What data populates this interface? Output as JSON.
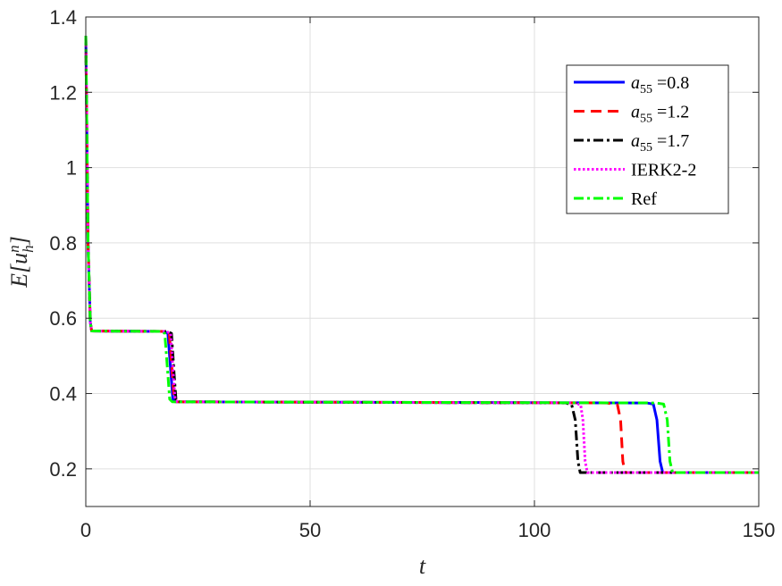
{
  "chart_data": {
    "type": "line",
    "title": "",
    "xlabel": "t",
    "ylabel_parts": {
      "main": "E[u",
      "sub": "h",
      "sup": "n",
      "close": "]"
    },
    "xlim": [
      0,
      150
    ],
    "ylim": [
      0.1,
      1.4
    ],
    "xticks": [
      0,
      50,
      100,
      150
    ],
    "yticks": [
      0.2,
      0.4,
      0.6,
      0.8,
      1.0,
      1.2,
      1.4
    ],
    "xtick_labels": [
      "0",
      "50",
      "100",
      "150"
    ],
    "ytick_labels": [
      "0.2",
      "0.4",
      "0.6",
      "0.8",
      "1",
      "1.2",
      "1.4"
    ],
    "grid": true,
    "legend_position": "top-right",
    "series": [
      {
        "legend_parts": [
          "a",
          "55",
          " =0.8"
        ],
        "color": "#0000ff",
        "dash": "solid",
        "x": [
          0,
          0.5,
          1.0,
          1.3,
          17,
          18.3,
          19.0,
          19.4,
          20,
          125,
          126.5,
          127.3,
          128.0,
          128.6,
          150
        ],
        "y": [
          1.35,
          0.8,
          0.59,
          0.566,
          0.565,
          0.56,
          0.45,
          0.385,
          0.378,
          0.375,
          0.372,
          0.33,
          0.22,
          0.19,
          0.19
        ]
      },
      {
        "legend_parts": [
          "a",
          "55",
          " =1.2"
        ],
        "color": "#ff0000",
        "dash": "dashed",
        "x": [
          0,
          0.5,
          1.0,
          1.3,
          17.5,
          18.6,
          19.3,
          19.7,
          20.3,
          116,
          118.5,
          119.2,
          119.7,
          120.2,
          150
        ],
        "y": [
          1.35,
          0.8,
          0.59,
          0.566,
          0.565,
          0.56,
          0.45,
          0.385,
          0.378,
          0.375,
          0.37,
          0.33,
          0.22,
          0.19,
          0.19
        ]
      },
      {
        "legend_parts": [
          "a",
          "55",
          " =1.7"
        ],
        "color": "#000000",
        "dash": "dashdot",
        "x": [
          0,
          0.5,
          1.0,
          1.3,
          18,
          19.1,
          19.7,
          20.1,
          20.6,
          107,
          108.3,
          109.1,
          109.7,
          110.2,
          150
        ],
        "y": [
          1.35,
          0.8,
          0.59,
          0.566,
          0.565,
          0.56,
          0.45,
          0.385,
          0.378,
          0.375,
          0.37,
          0.33,
          0.22,
          0.19,
          0.19
        ]
      },
      {
        "legend_parts": [
          "IERK2-2"
        ],
        "color": "#ff00ff",
        "dash": "dotted",
        "x": [
          0,
          0.5,
          1.0,
          1.3,
          17.8,
          18.9,
          19.5,
          19.9,
          20.4,
          109,
          110.3,
          110.8,
          111.3,
          111.8,
          150
        ],
        "y": [
          1.35,
          0.8,
          0.59,
          0.566,
          0.565,
          0.56,
          0.45,
          0.385,
          0.378,
          0.375,
          0.37,
          0.33,
          0.22,
          0.19,
          0.19
        ]
      },
      {
        "legend_parts": [
          "Ref"
        ],
        "color": "#00ff00",
        "dash": "dashdot",
        "x": [
          0,
          0.5,
          1.0,
          1.3,
          16.5,
          17.6,
          18.3,
          18.7,
          19.3,
          127,
          128.8,
          129.6,
          130.2,
          130.8,
          150
        ],
        "y": [
          1.35,
          0.8,
          0.59,
          0.566,
          0.565,
          0.56,
          0.45,
          0.385,
          0.378,
          0.375,
          0.372,
          0.33,
          0.22,
          0.19,
          0.19
        ]
      }
    ]
  }
}
